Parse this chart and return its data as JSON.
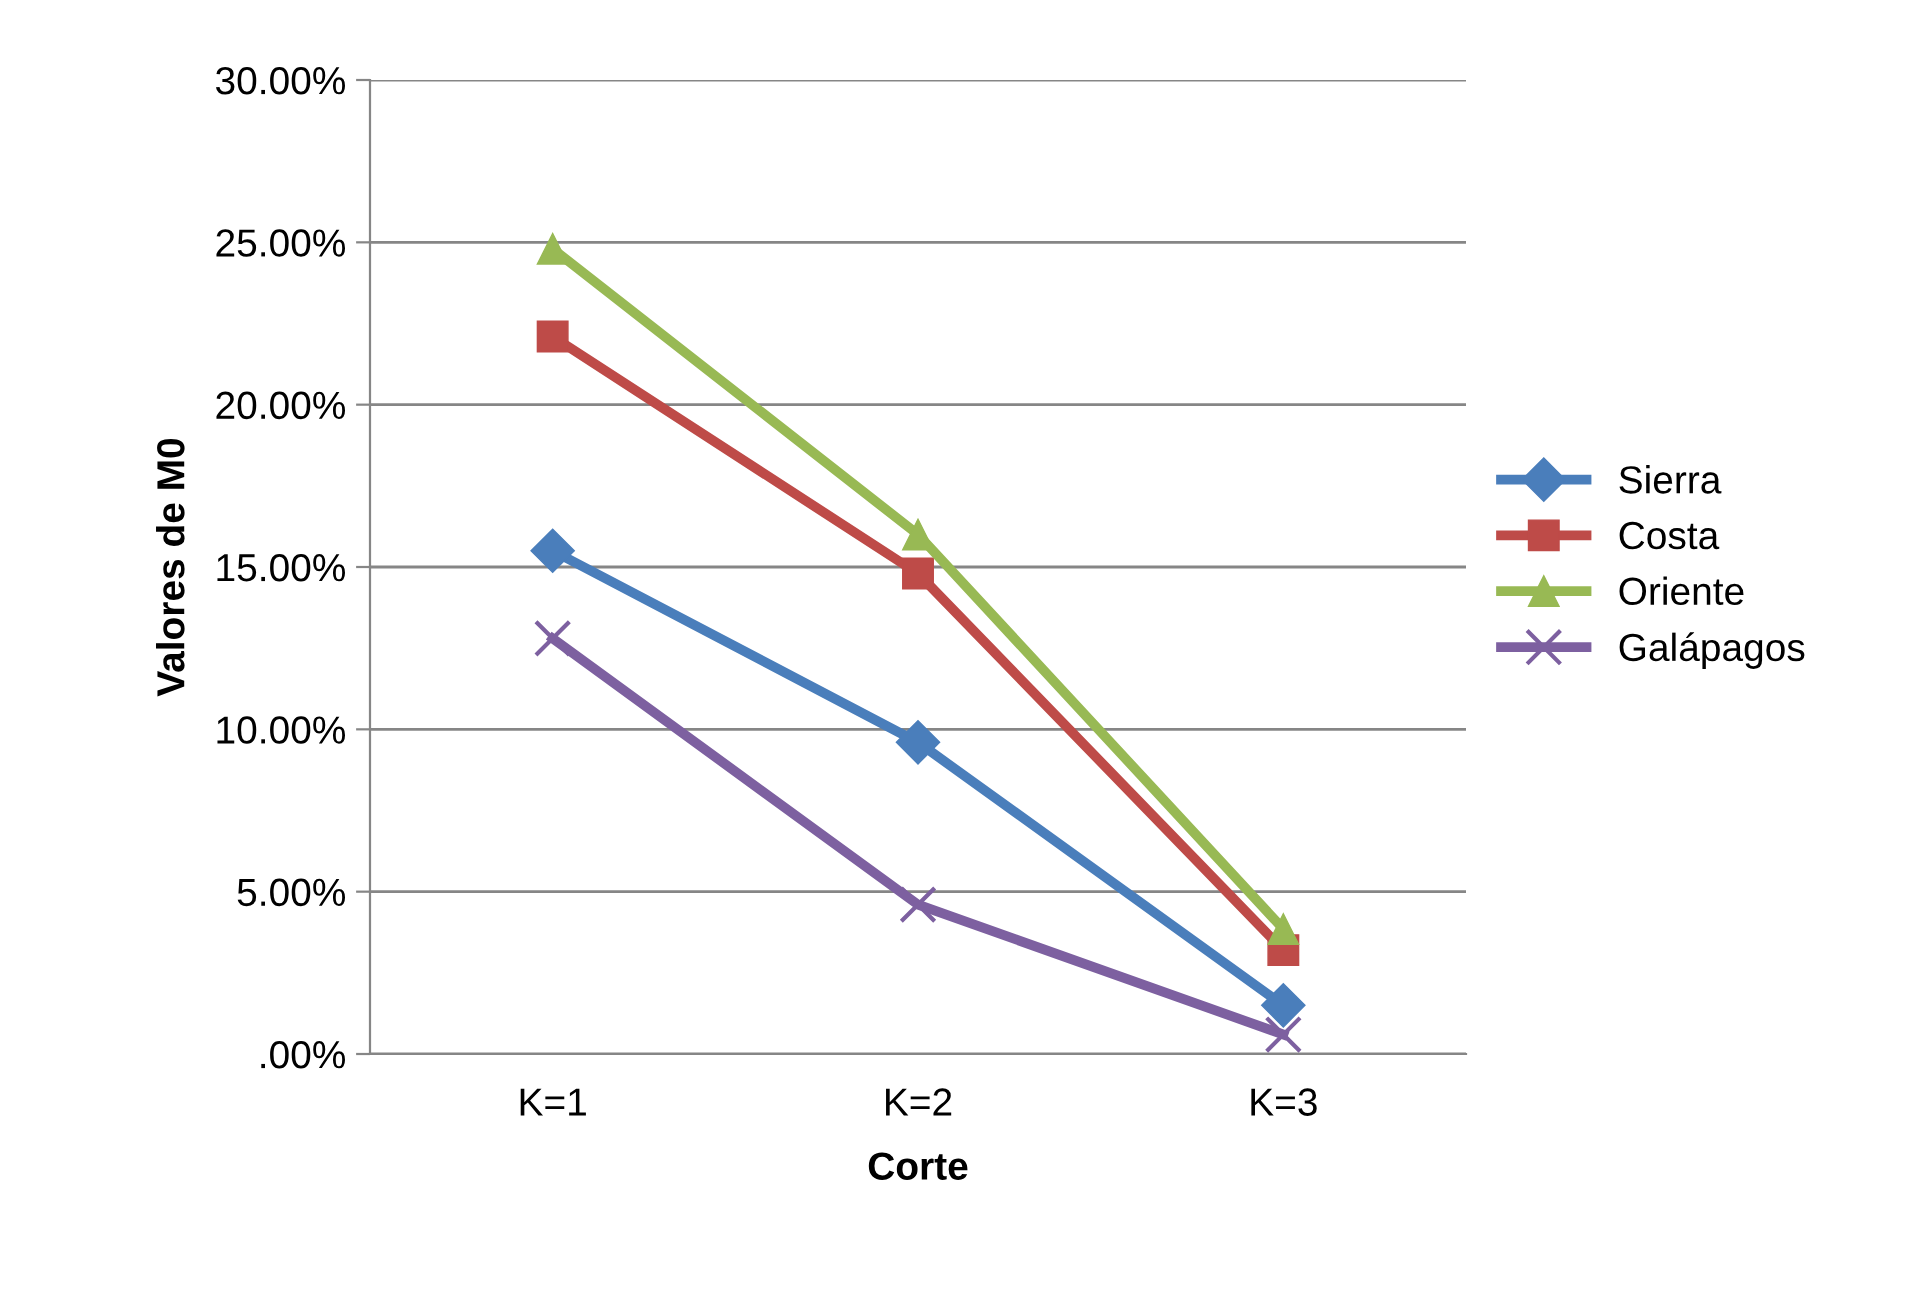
{
  "chart_data": {
    "type": "line",
    "xlabel": "Corte",
    "ylabel": "Valores de M0",
    "categories": [
      "K=1",
      "K=2",
      "K=3"
    ],
    "series": [
      {
        "name": "Sierra",
        "color": "#4a7ebb",
        "marker": "diamond",
        "values": [
          0.155,
          0.096,
          0.015
        ]
      },
      {
        "name": "Costa",
        "color": "#be4b48",
        "marker": "square",
        "values": [
          0.221,
          0.148,
          0.032
        ]
      },
      {
        "name": "Oriente",
        "color": "#98b954",
        "marker": "triangle",
        "values": [
          0.248,
          0.16,
          0.0385
        ]
      },
      {
        "name": "Galápagos",
        "color": "#7d60a0",
        "marker": "cross",
        "values": [
          0.128,
          0.046,
          0.006
        ]
      }
    ],
    "ylim": [
      0,
      0.3
    ],
    "yticks": [
      {
        "value": 0,
        "label": ".00%"
      },
      {
        "value": 0.05,
        "label": "5.00%"
      },
      {
        "value": 0.1,
        "label": "10.00%"
      },
      {
        "value": 0.15,
        "label": "15.00%"
      },
      {
        "value": 0.2,
        "label": "20.00%"
      },
      {
        "value": 0.25,
        "label": "25.00%"
      },
      {
        "value": 0.3,
        "label": "30.00%"
      }
    ],
    "grid": "y",
    "legend": "right",
    "line_style": "solid"
  }
}
